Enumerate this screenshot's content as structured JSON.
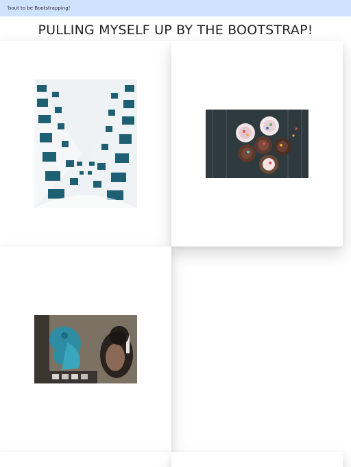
{
  "navbar": {
    "brand_text": "'bout to be Bootstrapping!"
  },
  "page": {
    "title": "PULLING MYSELF UP BY THE BOOTSTRAP!"
  },
  "cards": [
    {
      "image_icon": "building-photo-icon"
    },
    {
      "image_icon": "cupcakes-photo-icon"
    },
    {
      "image_icon": "graffiti-photo-icon"
    },
    {
      "image_icon": "photo-icon"
    },
    {
      "image_icon": "photo-icon"
    }
  ]
}
